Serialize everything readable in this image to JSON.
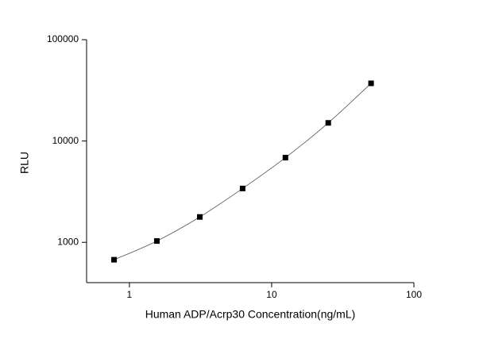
{
  "chart_data": {
    "type": "scatter",
    "xlabel": "Human ADP/Acrp30 Concentration(ng/mL)",
    "ylabel": "RLU",
    "x": [
      0.78,
      1.56,
      3.125,
      6.25,
      12.5,
      25,
      50
    ],
    "series": [
      {
        "values": [
          673,
          1030,
          1780,
          3400,
          6850,
          15100,
          37100
        ],
        "color": "#000000"
      }
    ],
    "xlim": [
      0.5,
      100
    ],
    "ylim": [
      400,
      100000
    ],
    "xticks": [
      1,
      10,
      100
    ],
    "yticks": [
      1000,
      10000,
      100000
    ],
    "xlog": true,
    "ylog": true,
    "fit_line": true,
    "grid": false
  }
}
